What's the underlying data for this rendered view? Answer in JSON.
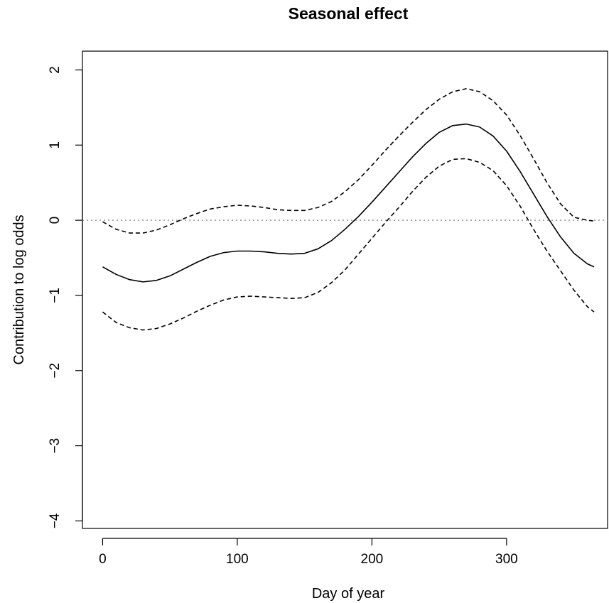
{
  "chart_data": {
    "type": "line",
    "title": "Seasonal effect",
    "xlabel": "Day of year",
    "ylabel": "Contribution to log odds",
    "xlim": [
      -15,
      375
    ],
    "ylim": [
      -4.1,
      2.25
    ],
    "xticks": [
      0,
      100,
      200,
      300
    ],
    "yticks": [
      -4,
      -3,
      -2,
      -1,
      0,
      1,
      2
    ],
    "x_tick_labels": [
      "0",
      "100",
      "200",
      "300"
    ],
    "y_tick_labels": [
      "−4",
      "−3",
      "−2",
      "−1",
      "0",
      "1",
      "2"
    ],
    "grid": false,
    "legend": "none",
    "reference_line": {
      "y": 0,
      "style": "dotted",
      "color": "#888888"
    },
    "series": [
      {
        "style": "solid",
        "color": "#000000",
        "x": [
          0,
          10,
          20,
          30,
          40,
          50,
          60,
          70,
          80,
          90,
          100,
          110,
          120,
          130,
          140,
          150,
          160,
          170,
          180,
          190,
          200,
          210,
          220,
          230,
          240,
          250,
          260,
          270,
          280,
          290,
          300,
          310,
          320,
          330,
          340,
          350,
          360,
          365
        ],
        "y": [
          -0.62,
          -0.72,
          -0.79,
          -0.82,
          -0.8,
          -0.74,
          -0.65,
          -0.56,
          -0.48,
          -0.43,
          -0.41,
          -0.41,
          -0.42,
          -0.44,
          -0.45,
          -0.44,
          -0.38,
          -0.27,
          -0.12,
          0.05,
          0.24,
          0.44,
          0.64,
          0.84,
          1.02,
          1.17,
          1.26,
          1.28,
          1.24,
          1.12,
          0.92,
          0.65,
          0.35,
          0.05,
          -0.22,
          -0.44,
          -0.58,
          -0.62
        ]
      },
      {
        "style": "dashed",
        "color": "#000000",
        "x": [
          0,
          10,
          20,
          30,
          40,
          50,
          60,
          70,
          80,
          90,
          100,
          110,
          120,
          130,
          140,
          150,
          160,
          170,
          180,
          190,
          200,
          210,
          220,
          230,
          240,
          250,
          260,
          270,
          280,
          290,
          300,
          310,
          320,
          330,
          340,
          350,
          360,
          365
        ],
        "y": [
          -0.02,
          -0.12,
          -0.17,
          -0.17,
          -0.13,
          -0.06,
          0.02,
          0.09,
          0.15,
          0.18,
          0.2,
          0.19,
          0.17,
          0.14,
          0.13,
          0.13,
          0.17,
          0.25,
          0.38,
          0.54,
          0.73,
          0.93,
          1.12,
          1.3,
          1.47,
          1.61,
          1.71,
          1.75,
          1.71,
          1.59,
          1.4,
          1.13,
          0.82,
          0.5,
          0.22,
          0.04,
          0.0,
          -0.01
        ]
      },
      {
        "style": "dashed",
        "color": "#000000",
        "x": [
          0,
          10,
          20,
          30,
          40,
          50,
          60,
          70,
          80,
          90,
          100,
          110,
          120,
          130,
          140,
          150,
          160,
          170,
          180,
          190,
          200,
          210,
          220,
          230,
          240,
          250,
          260,
          270,
          280,
          290,
          300,
          310,
          320,
          330,
          340,
          350,
          360,
          365
        ],
        "y": [
          -1.22,
          -1.36,
          -1.43,
          -1.46,
          -1.44,
          -1.38,
          -1.3,
          -1.21,
          -1.13,
          -1.06,
          -1.02,
          -1.01,
          -1.02,
          -1.03,
          -1.04,
          -1.03,
          -0.96,
          -0.83,
          -0.66,
          -0.45,
          -0.24,
          -0.03,
          0.17,
          0.38,
          0.57,
          0.72,
          0.81,
          0.82,
          0.77,
          0.66,
          0.46,
          0.19,
          -0.12,
          -0.41,
          -0.67,
          -0.93,
          -1.15,
          -1.22
        ]
      }
    ]
  }
}
